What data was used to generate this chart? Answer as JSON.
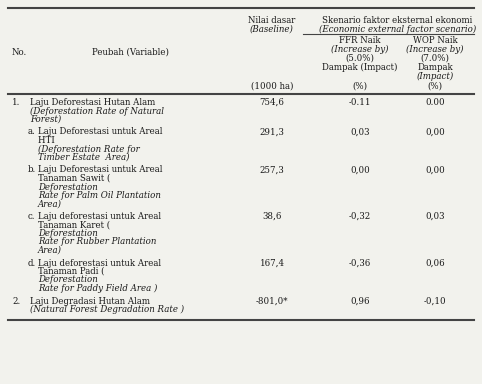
{
  "bg_color": "#f2f2ed",
  "text_color": "#1a1a1a",
  "line_color": "#444444",
  "font_size": 6.2,
  "rows": [
    {
      "no": "1.",
      "normal_lines": [
        "Laju Deforestasi Hutan Alam"
      ],
      "italic_lines": [
        "(Deforestation Rate of Natural",
        "Forest)"
      ],
      "baseline": "754,6",
      "ffr": "-0.11",
      "wop": "0.00",
      "indent": false
    },
    {
      "no": "a.",
      "normal_lines": [
        "Laju Deforestasi untuk Areal",
        "HTI "
      ],
      "italic_lines": [
        "(Deforestation Rate for",
        "Timber Estate  Area)"
      ],
      "baseline": "291,3",
      "ffr": "0,03",
      "wop": "0,00",
      "indent": true
    },
    {
      "no": "b.",
      "normal_lines": [
        "Laju Deforestasi untuk Areal",
        "Tanaman Sawit ( "
      ],
      "italic_lines": [
        "Deforestation",
        "Rate for Palm Oil Plantation",
        "Area)"
      ],
      "baseline": "257,3",
      "ffr": "0,00",
      "wop": "0,00",
      "indent": true
    },
    {
      "no": "c.",
      "normal_lines": [
        "Laju deforestasi untuk Areal",
        "Tanaman Karet ( "
      ],
      "italic_lines": [
        "Deforestation",
        "Rate for Rubber Plantation",
        "Area)"
      ],
      "baseline": "38,6",
      "ffr": "-0,32",
      "wop": "0,03",
      "indent": true
    },
    {
      "no": "d.",
      "normal_lines": [
        "Laju deforestasi untuk Areal",
        "Tanaman Padi ( "
      ],
      "italic_lines": [
        "Deforestation",
        "Rate for Paddy Field Area )"
      ],
      "baseline": "167,4",
      "ffr": "-0,36",
      "wop": "0,06",
      "indent": true
    },
    {
      "no": "2.",
      "normal_lines": [
        "Laju Degradasi Hutan Alam"
      ],
      "italic_lines": [
        "(Natural Forest Degradation Rate )"
      ],
      "baseline": "-801,0*",
      "ffr": "0,96",
      "wop": "-0,10",
      "indent": false
    }
  ]
}
